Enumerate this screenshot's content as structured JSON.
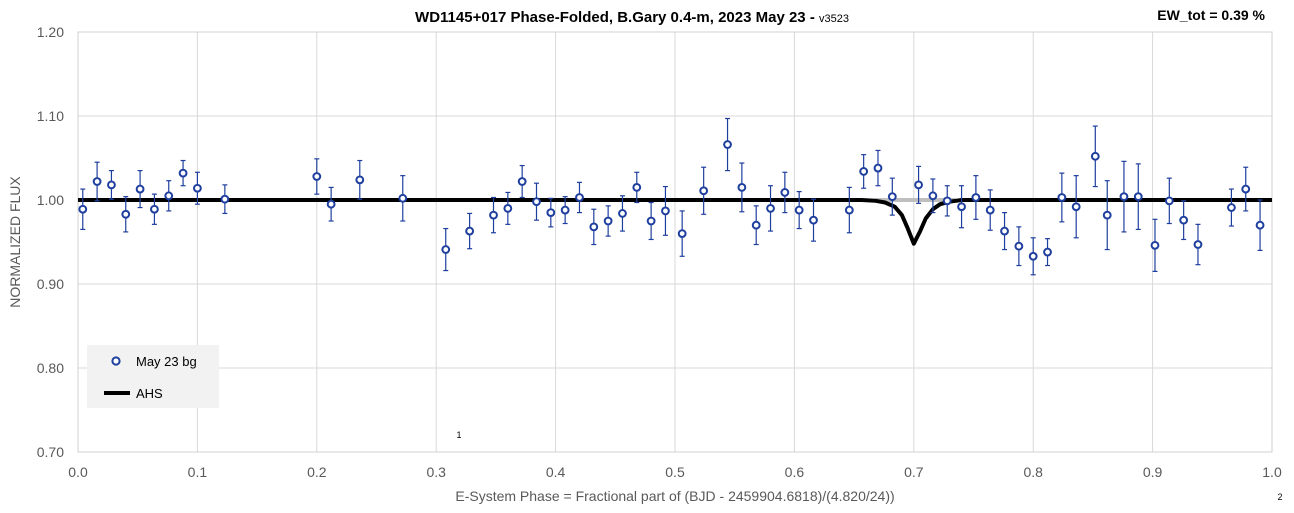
{
  "chart_data": {
    "type": "scatter",
    "title": "WD1145+017 Phase-Folded, B.Gary 0.4-m, 2023 May 23 - ",
    "title_suffix": "v3523",
    "annotation": "EW_tot = 0.39 %",
    "xlabel": "E-System Phase = Fractional part of (BJD - 2459904.6818)/(4.820/24))",
    "ylabel": "NORMALIZED FLUX",
    "xlim": [
      0.0,
      1.0
    ],
    "ylim": [
      0.7,
      1.2
    ],
    "x_ticks": [
      "0.0",
      "0.1",
      "0.2",
      "0.3",
      "0.4",
      "0.5",
      "0.6",
      "0.7",
      "0.8",
      "0.9",
      "1.0"
    ],
    "y_ticks": [
      "0.70",
      "0.80",
      "0.90",
      "1.00",
      "1.10",
      "1.20"
    ],
    "grid": true,
    "legend_position": "bottom-left",
    "stray_labels": [
      "1",
      "2"
    ],
    "series": [
      {
        "name": "May 23 bg",
        "kind": "points",
        "color": "#1f3f9e",
        "points": [
          [
            0.004,
            0.989,
            0.024
          ],
          [
            0.016,
            1.022,
            0.023
          ],
          [
            0.028,
            1.018,
            0.017
          ],
          [
            0.04,
            0.983,
            0.021
          ],
          [
            0.052,
            1.013,
            0.022
          ],
          [
            0.064,
            0.989,
            0.018
          ],
          [
            0.076,
            1.005,
            0.018
          ],
          [
            0.088,
            1.032,
            0.015
          ],
          [
            0.1,
            1.014,
            0.019
          ],
          [
            0.123,
            1.001,
            0.017
          ],
          [
            0.2,
            1.028,
            0.021
          ],
          [
            0.212,
            0.995,
            0.02
          ],
          [
            0.236,
            1.024,
            0.023
          ],
          [
            0.272,
            1.002,
            0.027
          ],
          [
            0.308,
            0.941,
            0.025
          ],
          [
            0.328,
            0.963,
            0.021
          ],
          [
            0.348,
            0.982,
            0.021
          ],
          [
            0.36,
            0.99,
            0.019
          ],
          [
            0.372,
            1.022,
            0.019
          ],
          [
            0.384,
            0.998,
            0.022
          ],
          [
            0.396,
            0.985,
            0.017
          ],
          [
            0.408,
            0.988,
            0.016
          ],
          [
            0.42,
            1.003,
            0.018
          ],
          [
            0.432,
            0.968,
            0.021
          ],
          [
            0.444,
            0.975,
            0.018
          ],
          [
            0.456,
            0.984,
            0.021
          ],
          [
            0.468,
            1.015,
            0.018
          ],
          [
            0.48,
            0.975,
            0.022
          ],
          [
            0.492,
            0.987,
            0.029
          ],
          [
            0.506,
            0.96,
            0.027
          ],
          [
            0.524,
            1.011,
            0.028
          ],
          [
            0.544,
            1.066,
            0.031
          ],
          [
            0.556,
            1.015,
            0.029
          ],
          [
            0.568,
            0.97,
            0.023
          ],
          [
            0.58,
            0.99,
            0.027
          ],
          [
            0.592,
            1.009,
            0.024
          ],
          [
            0.604,
            0.988,
            0.022
          ],
          [
            0.616,
            0.976,
            0.025
          ],
          [
            0.646,
            0.988,
            0.027
          ],
          [
            0.658,
            1.034,
            0.02
          ],
          [
            0.67,
            1.038,
            0.021
          ],
          [
            0.682,
            1.004,
            0.022
          ],
          [
            0.704,
            1.018,
            0.022
          ],
          [
            0.716,
            1.005,
            0.02
          ],
          [
            0.728,
            0.999,
            0.018
          ],
          [
            0.74,
            0.992,
            0.025
          ],
          [
            0.752,
            1.003,
            0.026
          ],
          [
            0.764,
            0.988,
            0.024
          ],
          [
            0.776,
            0.963,
            0.022
          ],
          [
            0.788,
            0.945,
            0.023
          ],
          [
            0.8,
            0.933,
            0.022
          ],
          [
            0.812,
            0.938,
            0.016
          ],
          [
            0.824,
            1.003,
            0.029
          ],
          [
            0.836,
            0.992,
            0.037
          ],
          [
            0.852,
            1.052,
            0.036
          ],
          [
            0.862,
            0.982,
            0.041
          ],
          [
            0.876,
            1.004,
            0.042
          ],
          [
            0.888,
            1.004,
            0.039
          ],
          [
            0.902,
            0.946,
            0.031
          ],
          [
            0.914,
            0.999,
            0.027
          ],
          [
            0.926,
            0.976,
            0.023
          ],
          [
            0.938,
            0.947,
            0.024
          ],
          [
            0.966,
            0.991,
            0.022
          ],
          [
            0.978,
            1.013,
            0.026
          ],
          [
            0.99,
            0.97,
            0.03
          ]
        ]
      },
      {
        "name": "AHS",
        "kind": "line",
        "color": "#000000",
        "x": [
          0.0,
          0.64,
          0.656,
          0.668,
          0.676,
          0.684,
          0.69,
          0.695,
          0.7,
          0.705,
          0.71,
          0.716,
          0.722,
          0.73,
          0.74,
          0.75,
          1.0
        ],
        "y": [
          1.0,
          1.0,
          1.0,
          0.999,
          0.997,
          0.992,
          0.982,
          0.966,
          0.948,
          0.962,
          0.978,
          0.989,
          0.995,
          0.998,
          1.0,
          1.0,
          1.0
        ]
      }
    ]
  }
}
